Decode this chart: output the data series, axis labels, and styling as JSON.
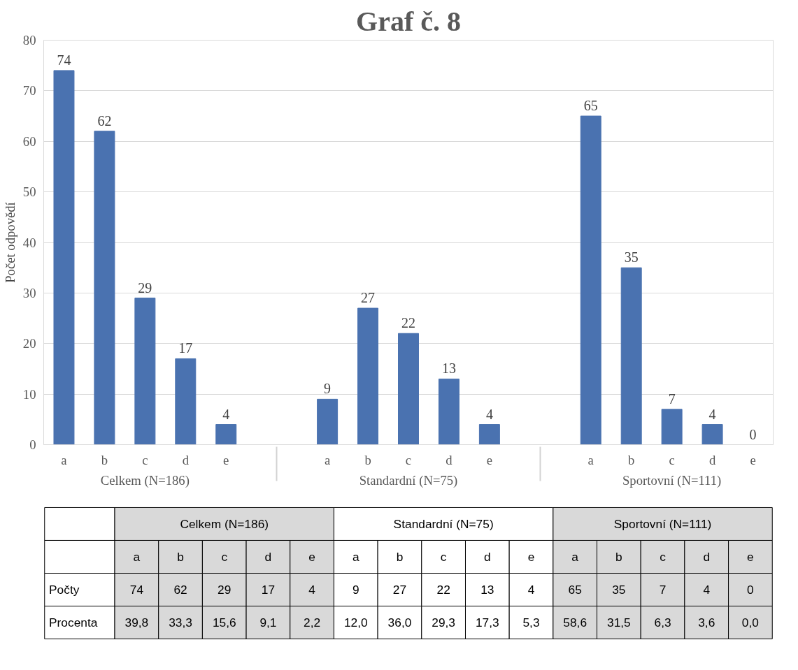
{
  "chart_data": [
    {
      "type": "bar",
      "title": "Graf č. 8",
      "ylabel": "Počet odpovědí",
      "categories": [
        "a",
        "b",
        "c",
        "d",
        "e",
        "a",
        "b",
        "c",
        "d",
        "e",
        "a",
        "b",
        "c",
        "d",
        "e"
      ],
      "values": [
        74,
        62,
        29,
        17,
        4,
        9,
        27,
        22,
        13,
        4,
        65,
        35,
        7,
        4,
        0
      ],
      "color": "#4a72b0",
      "ylim": [
        0,
        80
      ],
      "yticks": [
        0,
        10,
        20,
        30,
        40,
        50,
        60,
        70,
        80
      ],
      "grid": "y",
      "data_labels": true,
      "annotations": [
        "Celkem (N=186)",
        "Standardní (N=75)",
        "Sportovní (N=111)"
      ]
    },
    {
      "type": "other",
      "categories": [
        "a",
        "b",
        "c",
        "d",
        "e",
        "a",
        "b",
        "c",
        "d",
        "e",
        "a",
        "b",
        "c",
        "d",
        "e"
      ],
      "annotations": [
        "Celkem (N=186)",
        "Standardní (N=75)",
        "Sportovní (N=111)"
      ],
      "data_labels": true,
      "series": [
        {
          "name": "Počty",
          "values": [
            74,
            62,
            29,
            17,
            4,
            9,
            27,
            22,
            13,
            4,
            65,
            35,
            7,
            4,
            0
          ],
          "colors": [
            "#d9d9d9",
            "#d9d9d9",
            "#d9d9d9",
            "#d9d9d9",
            "#d9d9d9",
            "#ffffff",
            "#ffffff",
            "#ffffff",
            "#ffffff",
            "#ffffff",
            "#d9d9d9",
            "#d9d9d9",
            "#d9d9d9",
            "#d9d9d9",
            "#d9d9d9"
          ]
        },
        {
          "name": "Procenta",
          "values": [
            39.8,
            33.3,
            15.6,
            9.1,
            2.2,
            12.0,
            36.0,
            29.3,
            17.3,
            5.3,
            58.6,
            31.5,
            6.3,
            3.6,
            0.0
          ],
          "colors": [
            "#d9d9d9",
            "#d9d9d9",
            "#d9d9d9",
            "#d9d9d9",
            "#d9d9d9",
            "#ffffff",
            "#ffffff",
            "#ffffff",
            "#ffffff",
            "#ffffff",
            "#d9d9d9",
            "#d9d9d9",
            "#d9d9d9",
            "#d9d9d9",
            "#d9d9d9"
          ],
          "value_labels": [
            "39,8",
            "33,3",
            "15,6",
            "9,1",
            "2,2",
            "12,0",
            "36,0",
            "29,3",
            "17,3",
            "5,3",
            "58,6",
            "31,5",
            "6,3",
            "3,6",
            "0,0"
          ]
        }
      ]
    }
  ]
}
